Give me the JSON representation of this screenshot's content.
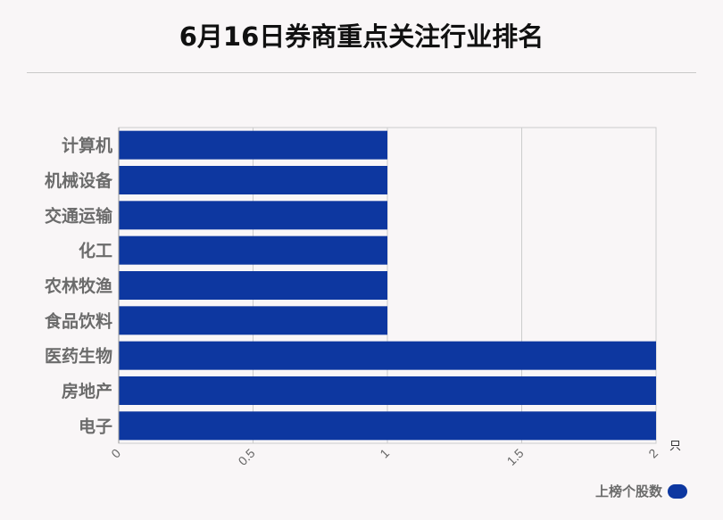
{
  "chart_data": {
    "type": "bar",
    "orientation": "horizontal",
    "title": "6月16日券商重点关注行业排名",
    "categories": [
      "计算机",
      "机械设备",
      "交通运输",
      "化工",
      "农林牧渔",
      "食品饮料",
      "医药生物",
      "房地产",
      "电子"
    ],
    "series": [
      {
        "name": "上榜个股数",
        "values": [
          1,
          1,
          1,
          1,
          1,
          1,
          2,
          2,
          2
        ],
        "color": "#0d37a0"
      }
    ],
    "x_ticks": [
      "0",
      "0.5",
      "1",
      "1.5",
      "2"
    ],
    "xlim": [
      0,
      2
    ],
    "unit": "只",
    "grid": "vertical",
    "legend_position": "bottom-right"
  },
  "colors": {
    "bar": "#0d37a0",
    "grid": "#cccccc",
    "category_text": "#6b6b6b"
  }
}
